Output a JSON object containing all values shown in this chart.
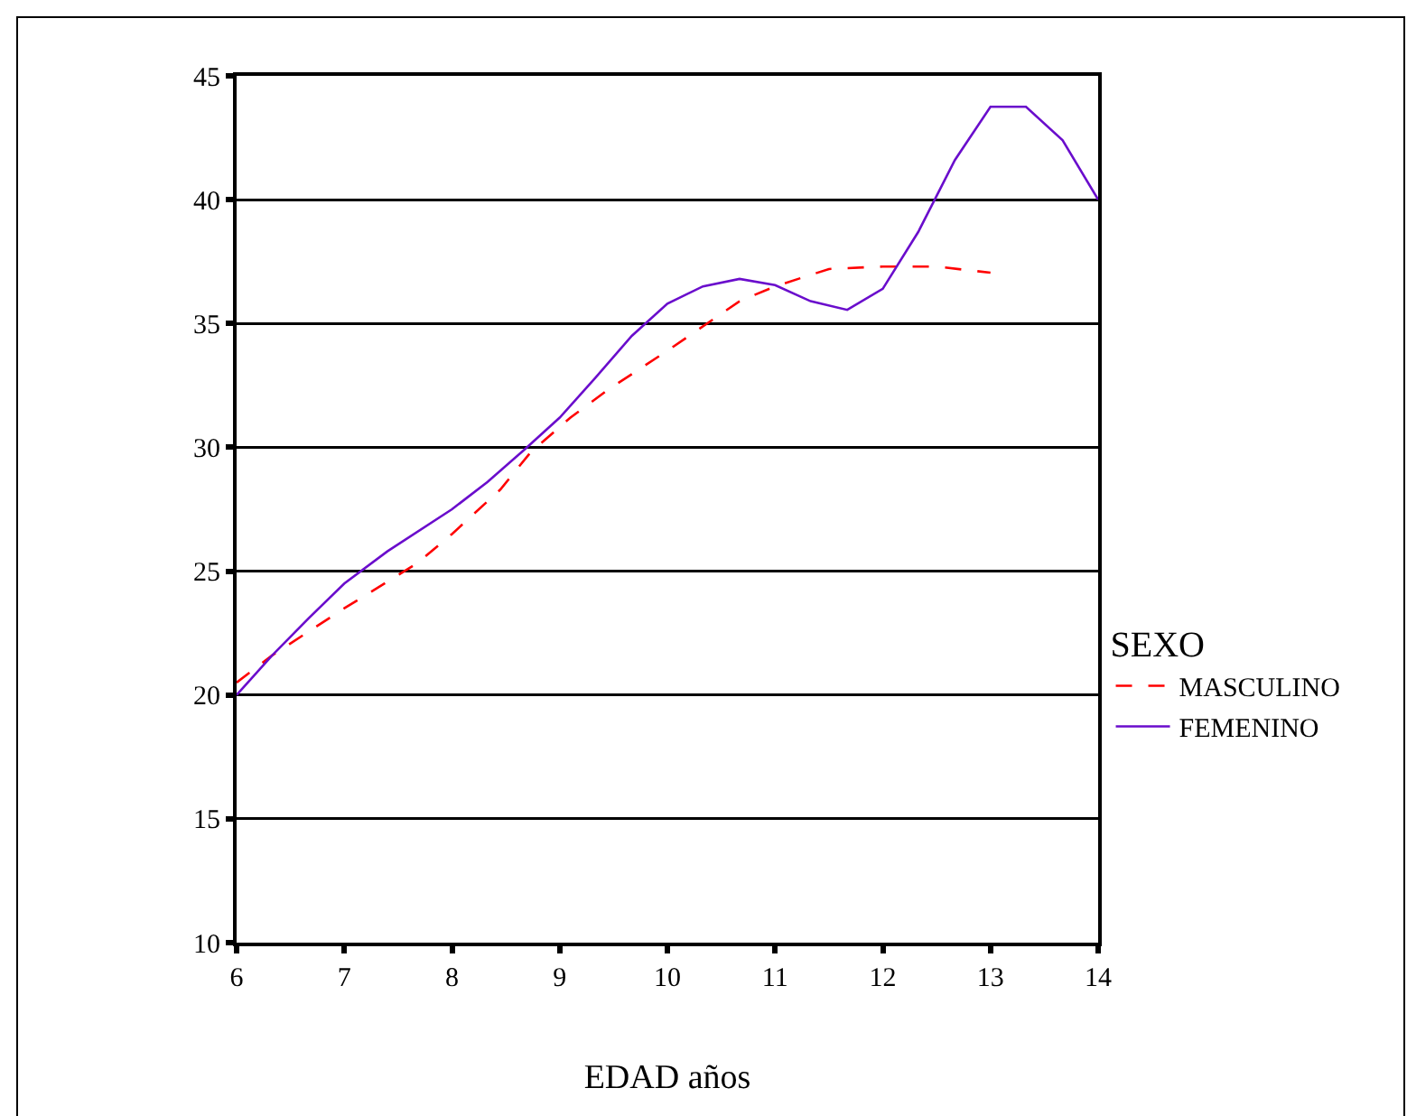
{
  "chart_data": {
    "type": "line",
    "xlabel": "EDAD años",
    "legend_title": "SEXO",
    "legend": "right",
    "grid": "y",
    "marker": "none",
    "xlim": [
      6,
      14
    ],
    "xticks": [
      6,
      7,
      8,
      9,
      10,
      11,
      12,
      13,
      14
    ],
    "ylim": [
      10,
      45
    ],
    "yticks": [
      10,
      15,
      20,
      25,
      30,
      35,
      40,
      45
    ],
    "series": [
      {
        "name": "MASCULINO",
        "color": "#ff0000",
        "line_style": "dashed",
        "x": [
          6,
          6.33,
          7,
          7.67,
          8,
          8.45,
          8.73,
          9.1,
          9.44,
          10,
          10.67,
          11,
          11.5,
          12,
          12.5,
          13
        ],
        "values": [
          20.5,
          21.6,
          23.5,
          25.3,
          26.5,
          28.3,
          29.8,
          31.2,
          32.3,
          33.9,
          35.9,
          36.5,
          37.2,
          37.3,
          37.3,
          37.05
        ]
      },
      {
        "name": "FEMENINO",
        "color": "#6a0dcc",
        "line_style": "solid",
        "x": [
          6,
          6.33,
          6.67,
          7,
          7.4,
          8,
          8.33,
          8.67,
          9,
          9.33,
          9.67,
          10,
          10.33,
          10.67,
          11,
          11.33,
          11.67,
          12,
          12.33,
          12.67,
          13,
          13.33,
          13.67,
          14
        ],
        "values": [
          20,
          21.6,
          23.1,
          24.5,
          25.8,
          27.5,
          28.6,
          29.9,
          31.2,
          32.8,
          34.5,
          35.8,
          36.5,
          36.8,
          36.55,
          35.9,
          35.55,
          36.4,
          38.7,
          41.6,
          43.75,
          43.75,
          42.4,
          40
        ]
      }
    ]
  }
}
